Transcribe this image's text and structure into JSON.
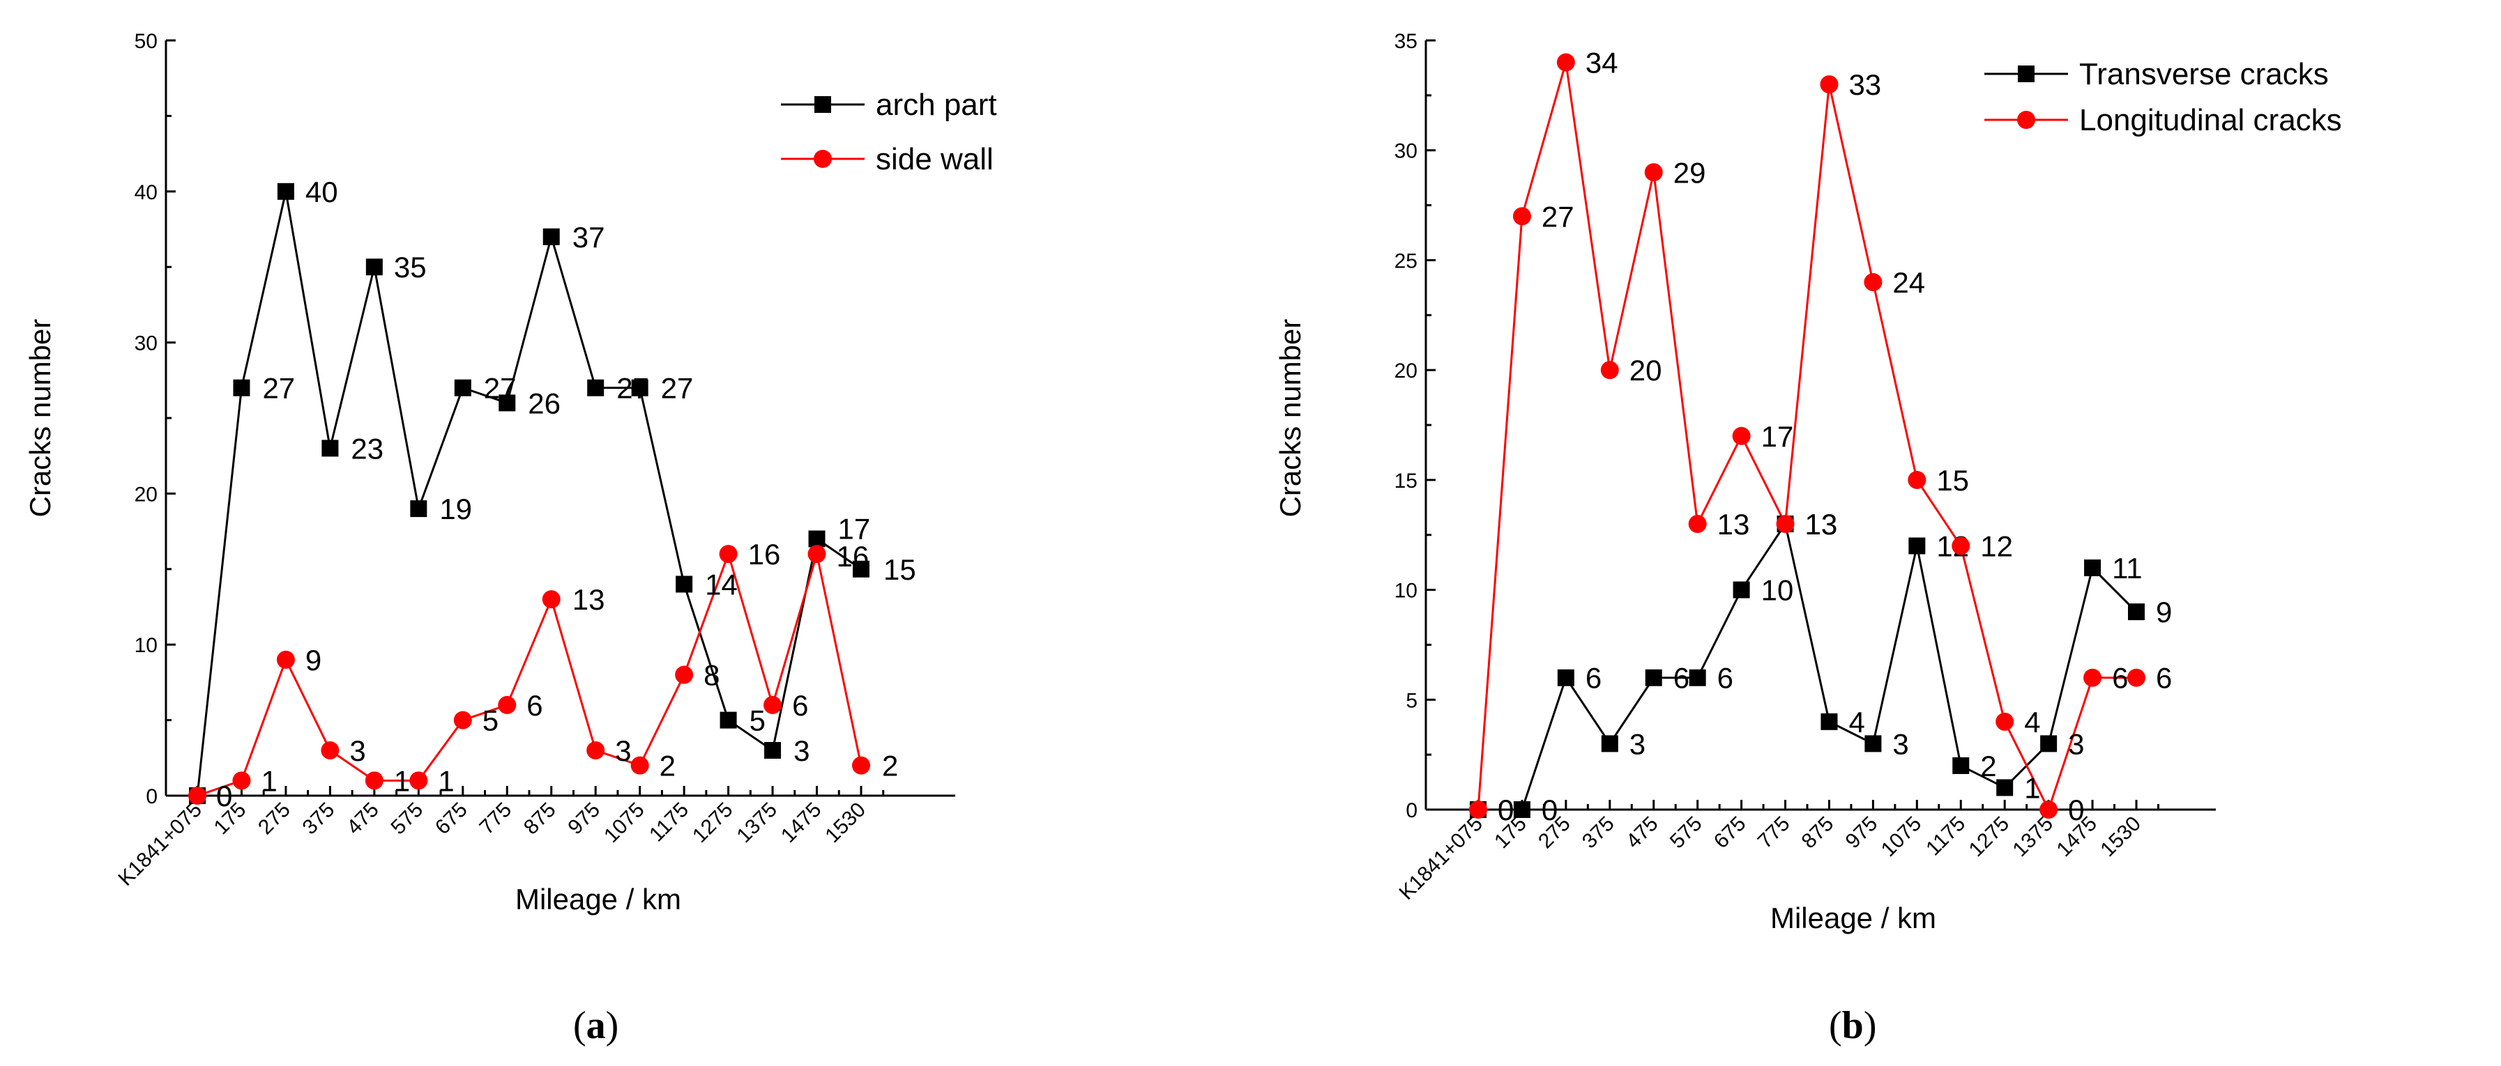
{
  "chart_data": [
    {
      "type": "line",
      "panel_label": "a",
      "title": "",
      "xlabel": "Mileage / km",
      "ylabel": "Cracks number",
      "ylim": [
        0,
        50
      ],
      "y_ticks": [
        0,
        10,
        20,
        30,
        40,
        50
      ],
      "categories": [
        "K1841+075",
        "175",
        "275",
        "375",
        "475",
        "575",
        "675",
        "775",
        "875",
        "975",
        "1075",
        "1175",
        "1275",
        "1375",
        "1475",
        "1530"
      ],
      "legend_position": "top-right",
      "series": [
        {
          "name": "arch part",
          "color": "#000000",
          "marker": "square",
          "values": [
            0,
            27,
            40,
            23,
            35,
            19,
            27,
            26,
            37,
            27,
            27,
            14,
            5,
            3,
            17,
            15
          ]
        },
        {
          "name": "side wall",
          "color": "#ff0000",
          "marker": "circle",
          "values": [
            0,
            1,
            9,
            3,
            1,
            1,
            5,
            6,
            13,
            3,
            2,
            8,
            16,
            6,
            16,
            2
          ]
        }
      ]
    },
    {
      "type": "line",
      "panel_label": "b",
      "title": "",
      "xlabel": "Mileage / km",
      "ylabel": "Cracks number",
      "ylim": [
        0,
        35
      ],
      "y_ticks": [
        0,
        5,
        10,
        15,
        20,
        25,
        30,
        35
      ],
      "categories": [
        "K1841+075",
        "175",
        "275",
        "375",
        "475",
        "575",
        "675",
        "775",
        "875",
        "975",
        "1075",
        "1175",
        "1275",
        "1375",
        "1475",
        "1530"
      ],
      "legend_position": "top-right",
      "series": [
        {
          "name": "Transverse cracks",
          "color": "#000000",
          "marker": "square",
          "values": [
            0,
            0,
            6,
            3,
            6,
            6,
            10,
            13,
            4,
            3,
            12,
            2,
            1,
            3,
            11,
            9
          ]
        },
        {
          "name": "Longitudinal cracks",
          "color": "#ff0000",
          "marker": "circle",
          "values": [
            0,
            27,
            34,
            20,
            29,
            13,
            17,
            13,
            33,
            24,
            15,
            12,
            4,
            0,
            6,
            6
          ]
        }
      ]
    }
  ]
}
